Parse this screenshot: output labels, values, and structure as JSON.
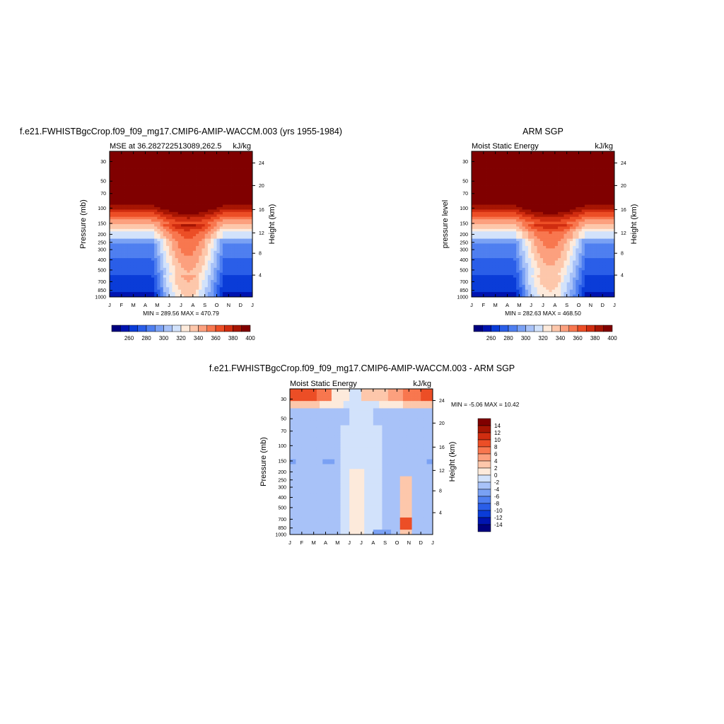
{
  "colors": {
    "palette": [
      "#00007f",
      "#0014b0",
      "#0a3cd8",
      "#2a5ee8",
      "#4f7ff0",
      "#7aa1f4",
      "#a8c2f8",
      "#d2e2fb",
      "#fdeadb",
      "#fdc7ab",
      "#fca07e",
      "#f8774f",
      "#ec4e26",
      "#d02d10",
      "#a61503",
      "#800000"
    ],
    "diff_palette": [
      "#00007f",
      "#0014b0",
      "#0a3cd8",
      "#2a5ee8",
      "#4f7ff0",
      "#7aa1f4",
      "#a8c2f8",
      "#d2e2fb",
      "#fdeadb",
      "#fdc7ab",
      "#fca07e",
      "#f8774f",
      "#ec4e26",
      "#d02d10",
      "#a61503",
      "#800000"
    ]
  },
  "chart_data": [
    {
      "type": "heatmap",
      "figure_title": "f.e21.FWHISTBgcCrop.f09_f09_mg17.CMIP6-AMIP-WACCM.003 (yrs 1955-1984)",
      "left_string": "MSE at 36.282722513089,262.5",
      "right_string": "kJ/kg",
      "ylabel": "Pressure (mb)",
      "ylabel_right": "Height (km)",
      "x_ticks": [
        "J",
        "F",
        "M",
        "A",
        "M",
        "J",
        "J",
        "A",
        "S",
        "O",
        "N",
        "D",
        "J"
      ],
      "y_ticks": [
        30,
        50,
        70,
        100,
        150,
        200,
        250,
        300,
        400,
        500,
        700,
        850,
        1000
      ],
      "y_right_ticks": [
        4,
        8,
        12,
        16,
        20,
        24
      ],
      "ylim": [
        1000,
        20
      ],
      "y_scale": "log",
      "stats": "MIN = 289.56 MAX = 470.79",
      "colorbar_levels": [
        260,
        280,
        300,
        320,
        340,
        360,
        380,
        400
      ],
      "value_range": [
        289.56,
        470.79
      ]
    },
    {
      "type": "heatmap",
      "figure_title": "ARM SGP",
      "left_string": "Moist Static Energy",
      "right_string": "kJ/kg",
      "ylabel": "pressure level",
      "ylabel_right": "Height (km)",
      "x_ticks": [
        "J",
        "F",
        "M",
        "A",
        "M",
        "J",
        "J",
        "A",
        "S",
        "O",
        "N",
        "D",
        "J"
      ],
      "y_ticks": [
        30,
        50,
        70,
        100,
        150,
        200,
        250,
        300,
        400,
        500,
        700,
        850,
        1000
      ],
      "y_right_ticks": [
        4,
        8,
        12,
        16,
        20,
        24
      ],
      "ylim": [
        1000,
        20
      ],
      "y_scale": "log",
      "stats": "MIN = 282.63 MAX = 468.50",
      "colorbar_levels": [
        260,
        280,
        300,
        320,
        340,
        360,
        380,
        400
      ],
      "value_range": [
        282.63,
        468.5
      ]
    },
    {
      "type": "heatmap",
      "figure_title": "f.e21.FWHISTBgcCrop.f09_f09_mg17.CMIP6-AMIP-WACCM.003 - ARM SGP",
      "left_string": "Moist Static Energy",
      "right_string": "kJ/kg",
      "ylabel": "Pressure (mb)",
      "ylabel_right": "Height (km)",
      "x_ticks": [
        "J",
        "F",
        "M",
        "A",
        "M",
        "J",
        "J",
        "A",
        "S",
        "O",
        "N",
        "D",
        "J"
      ],
      "y_ticks": [
        30,
        50,
        70,
        100,
        150,
        200,
        250,
        300,
        400,
        500,
        700,
        850,
        1000
      ],
      "y_right_ticks": [
        4,
        8,
        12,
        16,
        20,
        24
      ],
      "ylim": [
        1000,
        20
      ],
      "y_scale": "log",
      "stats": "MIN =  -5.06 MAX =  10.42",
      "colorbar_levels": [
        14,
        12,
        10,
        8,
        6,
        4,
        2,
        0,
        -2,
        -4,
        -6,
        -8,
        -10,
        -12,
        -14
      ],
      "value_range": [
        -5.06,
        10.42
      ]
    }
  ]
}
